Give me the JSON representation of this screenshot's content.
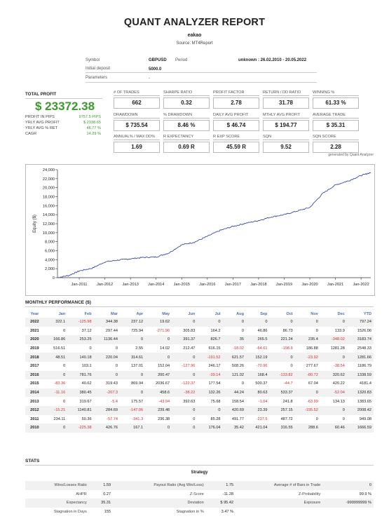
{
  "header": {
    "title": "QUANT ANALYZER REPORT",
    "user": "eakao",
    "source": "Source: MT4Report"
  },
  "info": {
    "symbol_label": "Symbol",
    "symbol_value": "GBPUSD",
    "period_label": "Period",
    "period_value": "unknown : 26.02.2010 - 20.05.2022",
    "deposit_label": "Initial deposit",
    "deposit_value": "5000.0",
    "params_label": "Parameters",
    "params_value": "-"
  },
  "total_profit": {
    "label": "TOTAL PROFIT",
    "value": "$ 23372.38",
    "rows": [
      {
        "k": "PROFIT IN PIPS",
        "v": "9757.5 PIPS"
      },
      {
        "k": "YRLY AVG PROFIT",
        "v": "$ 2338.65"
      },
      {
        "k": "YRLY AVG % RET",
        "v": "46.77 %"
      },
      {
        "k": "CAGR",
        "v": "14.29 %"
      }
    ]
  },
  "metrics": [
    {
      "label": "# OF TRADES",
      "value": "662"
    },
    {
      "label": "SHARPE RATIO",
      "value": "0.32"
    },
    {
      "label": "PROFIT FACTOR",
      "value": "2.78"
    },
    {
      "label": "RETURN / DD RATIO",
      "value": "31.78"
    },
    {
      "label": "WINNING %",
      "value": "61.33 %"
    },
    {
      "label": "DRAWDOWN",
      "value": "$ 735.54"
    },
    {
      "label": "% DRAWDOWN",
      "value": "8.46 %"
    },
    {
      "label": "DAILY AVG PROFIT",
      "value": "$ 46.74"
    },
    {
      "label": "MTHLY AVG PROFIT",
      "value": "$ 194.77"
    },
    {
      "label": "AVERAGE TRADE",
      "value": "$ 35.31"
    },
    {
      "label": "ANNUAL% / MAX DD%",
      "value": "1.69"
    },
    {
      "label": "R EXPECTANCY",
      "value": "0.69 R"
    },
    {
      "label": "R EXP SCORE",
      "value": "45.59 R"
    },
    {
      "label": "SQN",
      "value": "9.52"
    },
    {
      "label": "SQN SCORE",
      "value": "2.28"
    }
  ],
  "generated_by": "generated by Quant Analyzer",
  "chart_data": {
    "type": "line",
    "ylabel": "Equity ($)",
    "ylim": [
      0,
      24000
    ],
    "yticks": [
      "24,000",
      "22,000",
      "20,000",
      "18,000",
      "16,000",
      "14,000",
      "12,000",
      "10,000",
      "8,000",
      "6,000",
      "4,000",
      "2,000",
      "0"
    ],
    "xticks": [
      "Jan-2011",
      "Jan-2012",
      "Jan-2013",
      "Jan-2014",
      "Jan-2015",
      "Jan-2016",
      "Jan-2017",
      "Jan-2018",
      "Jan-2019",
      "Jan-2020",
      "Jan-2021",
      "Jan-2022"
    ],
    "x_start": 2010.15,
    "x_end": 2022.38,
    "points": [
      [
        2010.15,
        0
      ],
      [
        2010.6,
        500
      ],
      [
        2011.0,
        1500
      ],
      [
        2011.5,
        2100
      ],
      [
        2012.0,
        3500
      ],
      [
        2012.5,
        3900
      ],
      [
        2013.0,
        4200
      ],
      [
        2013.5,
        4500
      ],
      [
        2014.0,
        4600
      ],
      [
        2014.5,
        5500
      ],
      [
        2015.0,
        7300
      ],
      [
        2015.5,
        7900
      ],
      [
        2016.0,
        9200
      ],
      [
        2016.5,
        10500
      ],
      [
        2017.0,
        11400
      ],
      [
        2017.5,
        12100
      ],
      [
        2018.0,
        12700
      ],
      [
        2018.5,
        13500
      ],
      [
        2019.0,
        14000
      ],
      [
        2019.5,
        14800
      ],
      [
        2020.0,
        15600
      ],
      [
        2020.5,
        18700
      ],
      [
        2021.0,
        20600
      ],
      [
        2021.5,
        21500
      ],
      [
        2022.0,
        22700
      ],
      [
        2022.38,
        23372
      ]
    ],
    "color": "#3b48b0"
  },
  "performance": {
    "title": "MONTHLY PERFORMANCE ($)",
    "headers": [
      "Year",
      "Jan",
      "Feb",
      "Mar",
      "Apr",
      "May",
      "Jun",
      "Jul",
      "Aug",
      "Sep",
      "Oct",
      "Nov",
      "Dec",
      "YTD"
    ],
    "rows": [
      [
        "2022",
        "322.1",
        "-125.98",
        "344.38",
        "237.12",
        "19.62",
        "0",
        "0",
        "0",
        "0",
        "0",
        "0",
        "0",
        "797.24"
      ],
      [
        "2021",
        "0",
        "37.12",
        "297.44",
        "725.94",
        "-271.96",
        "305.83",
        "164.2",
        "0",
        "46.86",
        "86.73",
        "0",
        "133.9",
        "1526.06"
      ],
      [
        "2020",
        "166.86",
        "253.25",
        "1136.44",
        "0",
        "0",
        "391.37",
        "826.7",
        "35",
        "265.5",
        "221.24",
        "235.4",
        "-348.02",
        "3183.74"
      ],
      [
        "2019",
        "516.51",
        "0",
        "0",
        "2.55",
        "14.02",
        "212.47",
        "616.15",
        "-18.02",
        "-64.61",
        "-198.9",
        "186.88",
        "1281.28",
        "2548.33"
      ],
      [
        "2018",
        "48.51",
        "140.18",
        "220.04",
        "314.61",
        "0",
        "0",
        "-191.52",
        "621.57",
        "152.19",
        "0",
        "-23.92",
        "0",
        "1281.66"
      ],
      [
        "2017",
        "0",
        "103.1",
        "0",
        "137.01",
        "152.04",
        "-127.96",
        "246.17",
        "508.26",
        "-70.96",
        "0",
        "277.67",
        "-38.54",
        "1186.79"
      ],
      [
        "2016",
        "0",
        "781.76",
        "0",
        "0",
        "200.47",
        "0",
        "-39.14",
        "121.02",
        "168.4",
        "-133.82",
        "-80.72",
        "320.62",
        "1338.59"
      ],
      [
        "2015",
        "-83.36",
        "40.62",
        "319.43",
        "869.94",
        "2036.67",
        "-122.37",
        "177.54",
        "0",
        "500.37",
        "-44.7",
        "67.04",
        "420.22",
        "4181.4"
      ],
      [
        "2014",
        "-11.16",
        "380.45",
        "-207.3",
        "0",
        "458.6",
        "-38.22",
        "132.26",
        "44.24",
        "80.63",
        "533.37",
        "0",
        "-52.04",
        "1320.83"
      ],
      [
        "2013",
        "0",
        "319.67",
        "-5.4",
        "175.57",
        "-43.94",
        "392.63",
        "75.68",
        "158.54",
        "-1.04",
        "241.8",
        "-63.99",
        "134.13",
        "1383.65"
      ],
      [
        "2012",
        "-15.21",
        "1140.81",
        "284.69",
        "-147.06",
        "239.48",
        "0",
        "0",
        "420.69",
        "23.39",
        "257.15",
        "-195.52",
        "0",
        "2008.42"
      ],
      [
        "2011",
        "234.11",
        "50.36",
        "-57.74",
        "-341.3",
        "236.38",
        "0",
        "85.28",
        "491.77",
        "-237.5",
        "487.72",
        "0",
        "0",
        "949.08"
      ],
      [
        "2010",
        "0",
        "-225.38",
        "426.76",
        "167.1",
        "0",
        "0",
        "176.04",
        "35.42",
        "421.04",
        "316.55",
        "288.6",
        "60.46",
        "1666.59"
      ]
    ]
  },
  "stats": {
    "title": "STATS",
    "strategy_label": "Strategy",
    "rows": [
      [
        "Wins/Losses Ratio",
        "1.59",
        "Payout Ratio (Avg Win/Loss)",
        "1.75",
        "Average # of Bars in Trade",
        "0"
      ],
      [
        "AHPR",
        "0.27",
        "Z-Score",
        "-11.28",
        "Z-Probability",
        "99.9 %"
      ],
      [
        "Expectancy",
        "35.31",
        "Deviation",
        "$ 95.42",
        "Exposure",
        "-999999999 %"
      ],
      [
        "Stagnation in Days",
        "155",
        "Stagnation in %",
        "3.47 %",
        "",
        ""
      ]
    ]
  }
}
